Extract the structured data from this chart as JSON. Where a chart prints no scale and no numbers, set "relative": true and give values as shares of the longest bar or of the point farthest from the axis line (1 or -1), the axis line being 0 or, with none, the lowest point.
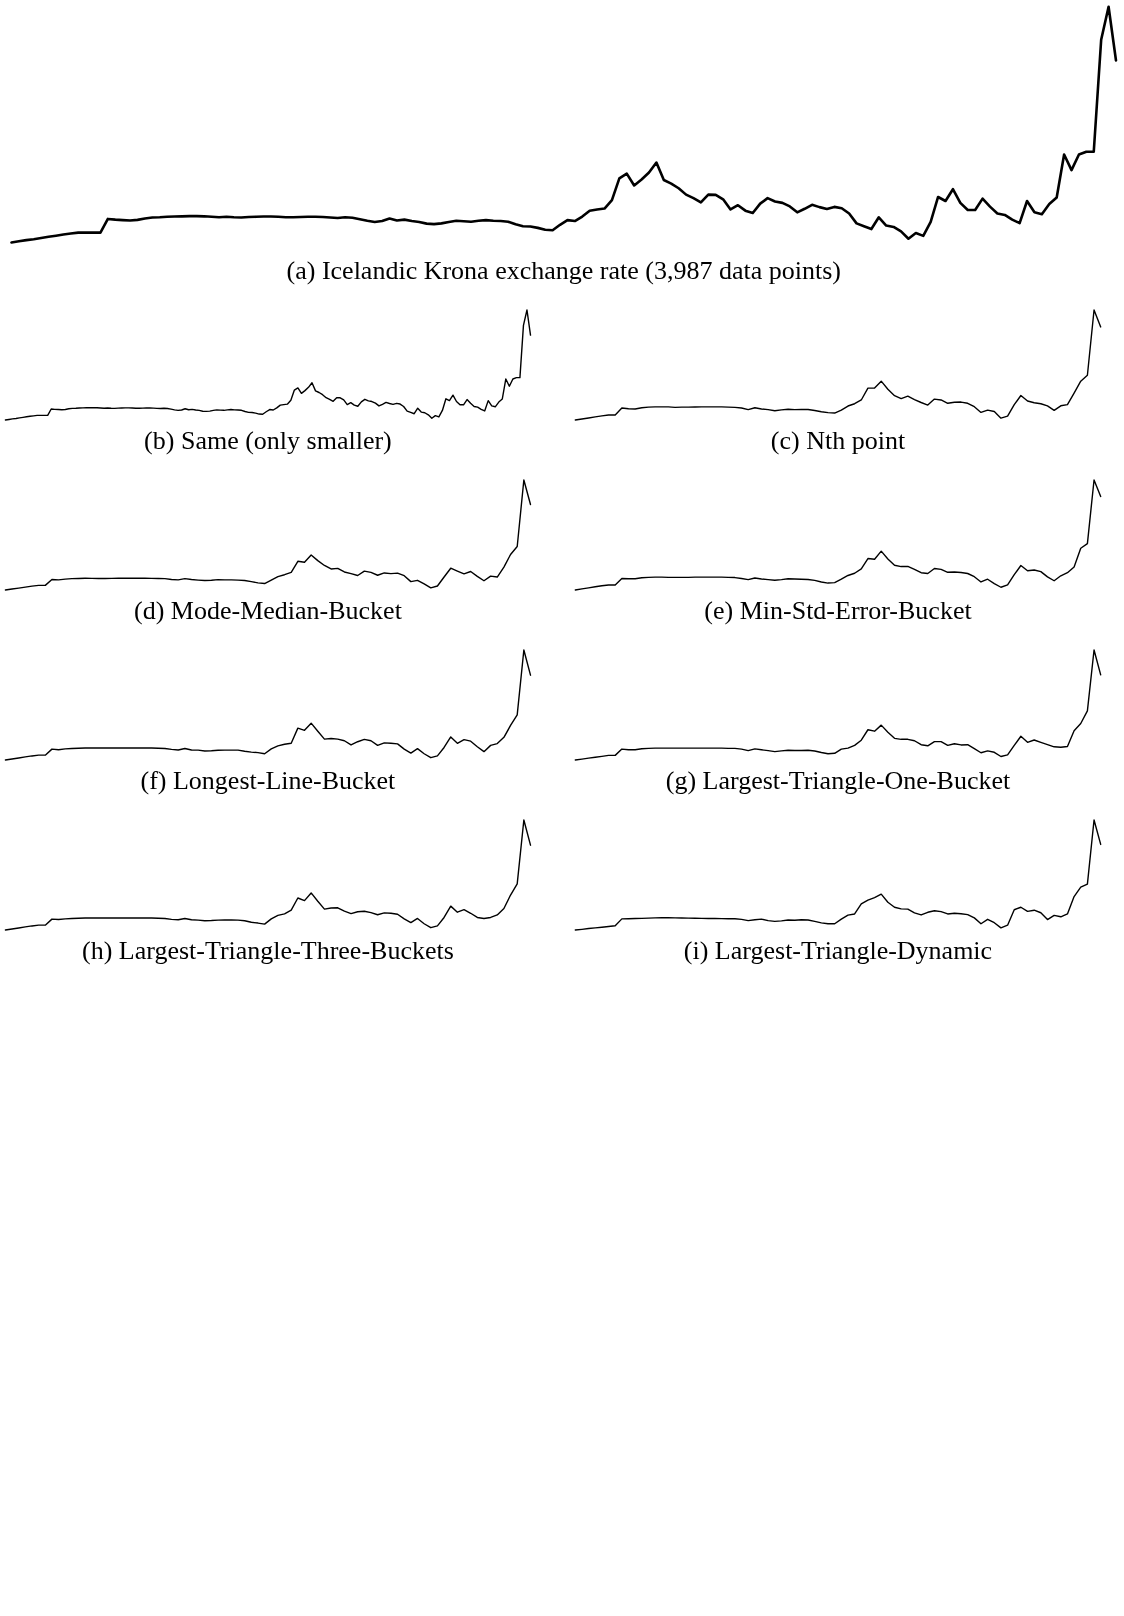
{
  "chart_data": [
    {
      "type": "line",
      "title": "(a) Icelandic Krona exchange rate (3,987 data points)",
      "relative": true,
      "categories": [
        null,
        null,
        null,
        null,
        null,
        null,
        null,
        null,
        null,
        null,
        null,
        null,
        null,
        null,
        null,
        null,
        null,
        null,
        null,
        null,
        null,
        null,
        null,
        null,
        null,
        null,
        null,
        null,
        null,
        null,
        null,
        null,
        null,
        null,
        null,
        null,
        null,
        null,
        null,
        null,
        null,
        null,
        null,
        null,
        null,
        null,
        null,
        null,
        null,
        null,
        null,
        null,
        null,
        null,
        null,
        null,
        null,
        null,
        null,
        null,
        null,
        null,
        null,
        null,
        null,
        null,
        null,
        null,
        null,
        null,
        null,
        null,
        null,
        null,
        null,
        null,
        null,
        null,
        null,
        null,
        null,
        null,
        null,
        null,
        null,
        null,
        null,
        null,
        null,
        null,
        null,
        null,
        null,
        null,
        null,
        null,
        null,
        null,
        null,
        null,
        null,
        null,
        null,
        null,
        null,
        null,
        null,
        null,
        null,
        null,
        null,
        null,
        null,
        null,
        null,
        null,
        null,
        null,
        null,
        null,
        null,
        null,
        null,
        null,
        null,
        null,
        null,
        null,
        null,
        null,
        null,
        null,
        null,
        null,
        null,
        null,
        null,
        null,
        null,
        null,
        null,
        null,
        null,
        null,
        null,
        null,
        null,
        null,
        null,
        null
      ],
      "series": [
        {
          "color": "#000000",
          "values": [
            0,
            0.005,
            0.01,
            0.014,
            0.019,
            0.024,
            0.029,
            0.034,
            0.038,
            0.042,
            0.042,
            0.042,
            0.042,
            0.1,
            0.097,
            0.095,
            0.093,
            0.096,
            0.102,
            0.106,
            0.107,
            0.109,
            0.11,
            0.111,
            0.112,
            0.112,
            0.111,
            0.109,
            0.107,
            0.109,
            0.107,
            0.106,
            0.108,
            0.109,
            0.11,
            0.11,
            0.109,
            0.107,
            0.107,
            0.108,
            0.109,
            0.109,
            0.108,
            0.106,
            0.104,
            0.107,
            0.105,
            0.099,
            0.092,
            0.087,
            0.091,
            0.102,
            0.093,
            0.097,
            0.091,
            0.087,
            0.08,
            0.078,
            0.081,
            0.087,
            0.092,
            0.09,
            0.088,
            0.092,
            0.095,
            0.092,
            0.091,
            0.088,
            0.077,
            0.069,
            0.068,
            0.062,
            0.054,
            0.052,
            0.075,
            0.095,
            0.091,
            0.11,
            0.135,
            0.14,
            0.144,
            0.18,
            0.272,
            0.292,
            0.242,
            0.267,
            0.297,
            0.339,
            0.265,
            0.25,
            0.23,
            0.203,
            0.188,
            0.17,
            0.203,
            0.202,
            0.183,
            0.14,
            0.158,
            0.135,
            0.125,
            0.165,
            0.188,
            0.174,
            0.168,
            0.153,
            0.128,
            0.143,
            0.16,
            0.15,
            0.142,
            0.151,
            0.145,
            0.123,
            0.081,
            0.069,
            0.057,
            0.107,
            0.072,
            0.066,
            0.047,
            0.016,
            0.04,
            0.028,
            0.087,
            0.193,
            0.176,
            0.226,
            0.168,
            0.138,
            0.138,
            0.186,
            0.152,
            0.123,
            0.117,
            0.097,
            0.082,
            0.176,
            0.128,
            0.12,
            0.163,
            0.191,
            0.373,
            0.307,
            0.373,
            0.385,
            0.385,
            0.86,
            1,
            0.772
          ]
        }
      ]
    },
    {
      "type": "line",
      "title": "(b) Same (only smaller)",
      "relative": true,
      "categories": [
        null,
        null,
        null,
        null,
        null,
        null,
        null,
        null,
        null,
        null,
        null,
        null,
        null,
        null,
        null,
        null,
        null,
        null,
        null,
        null,
        null,
        null,
        null,
        null,
        null,
        null,
        null,
        null,
        null,
        null,
        null,
        null,
        null,
        null,
        null,
        null,
        null,
        null,
        null,
        null,
        null,
        null,
        null,
        null,
        null,
        null,
        null,
        null,
        null,
        null,
        null,
        null,
        null,
        null,
        null,
        null,
        null,
        null,
        null,
        null,
        null,
        null,
        null,
        null,
        null,
        null,
        null,
        null,
        null,
        null,
        null,
        null,
        null,
        null,
        null,
        null,
        null,
        null,
        null,
        null,
        null,
        null,
        null,
        null,
        null,
        null,
        null,
        null,
        null,
        null,
        null,
        null,
        null,
        null,
        null,
        null,
        null,
        null,
        null,
        null,
        null,
        null,
        null,
        null,
        null,
        null,
        null,
        null,
        null,
        null,
        null,
        null,
        null,
        null,
        null,
        null,
        null,
        null,
        null,
        null,
        null,
        null,
        null,
        null,
        null,
        null,
        null,
        null,
        null,
        null,
        null,
        null,
        null,
        null,
        null,
        null,
        null,
        null,
        null,
        null,
        null,
        null,
        null,
        null,
        null,
        null,
        null,
        null,
        null,
        null
      ],
      "series": [
        {
          "color": "#000000",
          "values": [
            0,
            0.005,
            0.01,
            0.014,
            0.019,
            0.024,
            0.029,
            0.034,
            0.038,
            0.042,
            0.042,
            0.042,
            0.042,
            0.1,
            0.097,
            0.095,
            0.093,
            0.096,
            0.102,
            0.106,
            0.107,
            0.109,
            0.11,
            0.111,
            0.112,
            0.112,
            0.111,
            0.109,
            0.107,
            0.109,
            0.107,
            0.106,
            0.108,
            0.109,
            0.11,
            0.11,
            0.109,
            0.107,
            0.107,
            0.108,
            0.109,
            0.109,
            0.108,
            0.106,
            0.104,
            0.107,
            0.105,
            0.099,
            0.092,
            0.087,
            0.091,
            0.102,
            0.093,
            0.097,
            0.091,
            0.087,
            0.08,
            0.078,
            0.081,
            0.087,
            0.092,
            0.09,
            0.088,
            0.092,
            0.095,
            0.092,
            0.091,
            0.088,
            0.077,
            0.069,
            0.068,
            0.062,
            0.054,
            0.052,
            0.075,
            0.095,
            0.091,
            0.11,
            0.135,
            0.14,
            0.144,
            0.18,
            0.272,
            0.292,
            0.242,
            0.267,
            0.297,
            0.339,
            0.265,
            0.25,
            0.23,
            0.203,
            0.188,
            0.17,
            0.203,
            0.202,
            0.183,
            0.14,
            0.158,
            0.135,
            0.125,
            0.165,
            0.188,
            0.174,
            0.168,
            0.153,
            0.128,
            0.143,
            0.16,
            0.15,
            0.142,
            0.151,
            0.145,
            0.123,
            0.081,
            0.069,
            0.057,
            0.107,
            0.072,
            0.066,
            0.047,
            0.016,
            0.04,
            0.028,
            0.087,
            0.193,
            0.176,
            0.226,
            0.168,
            0.138,
            0.138,
            0.186,
            0.152,
            0.123,
            0.117,
            0.097,
            0.082,
            0.176,
            0.128,
            0.12,
            0.163,
            0.191,
            0.373,
            0.307,
            0.373,
            0.385,
            0.385,
            0.86,
            1,
            0.772
          ]
        }
      ]
    },
    {
      "type": "line",
      "title": "(c) Nth point",
      "relative": true,
      "categories": [
        null,
        null,
        null,
        null,
        null,
        null,
        null,
        null,
        null,
        null,
        null,
        null,
        null,
        null,
        null,
        null,
        null,
        null,
        null,
        null,
        null,
        null,
        null,
        null,
        null,
        null,
        null,
        null,
        null,
        null,
        null,
        null,
        null,
        null,
        null,
        null,
        null,
        null,
        null,
        null,
        null,
        null,
        null,
        null,
        null,
        null,
        null,
        null,
        null,
        null,
        null,
        null,
        null,
        null,
        null,
        null,
        null,
        null,
        null,
        null,
        null,
        null,
        null,
        null,
        null,
        null,
        null,
        null,
        null,
        null,
        null,
        null,
        null,
        null,
        null,
        null,
        null,
        null,
        null,
        null
      ],
      "series": [
        {
          "color": "#000000",
          "values": [
            0,
            0.009,
            0.018,
            0.028,
            0.037,
            0.046,
            0.046,
            0.109,
            0.102,
            0.1,
            0.111,
            0.117,
            0.119,
            0.119,
            0.119,
            0.115,
            0.117,
            0.117,
            0.118,
            0.119,
            0.119,
            0.119,
            0.119,
            0.117,
            0.115,
            0.109,
            0.094,
            0.111,
            0.1,
            0.094,
            0.084,
            0.092,
            0.098,
            0.094,
            0.096,
            0.096,
            0.086,
            0.075,
            0.067,
            0.063,
            0.09,
            0.127,
            0.148,
            0.182,
            0.29,
            0.29,
            0.353,
            0.28,
            0.221,
            0.194,
            0.217,
            0.186,
            0.159,
            0.136,
            0.19,
            0.182,
            0.152,
            0.161,
            0.163,
            0.152,
            0.121,
            0.069,
            0.09,
            0.077,
            0.017,
            0.035,
            0.14,
            0.223,
            0.173,
            0.157,
            0.148,
            0.129,
            0.088,
            0.129,
            0.14,
            0.244,
            0.353,
            0.407,
            1,
            0.846
          ]
        }
      ]
    },
    {
      "type": "line",
      "title": "(d) Mode-Median-Bucket",
      "relative": true,
      "categories": [
        null,
        null,
        null,
        null,
        null,
        null,
        null,
        null,
        null,
        null,
        null,
        null,
        null,
        null,
        null,
        null,
        null,
        null,
        null,
        null,
        null,
        null,
        null,
        null,
        null,
        null,
        null,
        null,
        null,
        null,
        null,
        null,
        null,
        null,
        null,
        null,
        null,
        null,
        null,
        null,
        null,
        null,
        null,
        null,
        null,
        null,
        null,
        null,
        null,
        null,
        null,
        null,
        null,
        null,
        null,
        null,
        null,
        null,
        null,
        null,
        null,
        null,
        null,
        null,
        null,
        null,
        null,
        null,
        null,
        null,
        null,
        null,
        null,
        null,
        null,
        null,
        null,
        null,
        null,
        null
      ],
      "series": [
        {
          "color": "#000000",
          "values": [
            0,
            0.009,
            0.017,
            0.026,
            0.035,
            0.042,
            0.042,
            0.095,
            0.092,
            0.099,
            0.103,
            0.105,
            0.107,
            0.106,
            0.105,
            0.105,
            0.106,
            0.107,
            0.107,
            0.107,
            0.107,
            0.107,
            0.106,
            0.105,
            0.103,
            0.095,
            0.092,
            0.103,
            0.095,
            0.09,
            0.086,
            0.088,
            0.094,
            0.092,
            0.092,
            0.09,
            0.086,
            0.076,
            0.065,
            0.059,
            0.09,
            0.122,
            0.139,
            0.16,
            0.261,
            0.252,
            0.319,
            0.267,
            0.223,
            0.191,
            0.197,
            0.164,
            0.149,
            0.132,
            0.172,
            0.16,
            0.134,
            0.155,
            0.149,
            0.153,
            0.13,
            0.076,
            0.088,
            0.055,
            0.019,
            0.036,
            0.118,
            0.198,
            0.172,
            0.147,
            0.168,
            0.124,
            0.084,
            0.126,
            0.118,
            0.208,
            0.323,
            0.395,
            1,
            0.777
          ]
        }
      ]
    },
    {
      "type": "line",
      "title": "(e) Min-Std-Error-Bucket",
      "relative": true,
      "categories": [
        null,
        null,
        null,
        null,
        null,
        null,
        null,
        null,
        null,
        null,
        null,
        null,
        null,
        null,
        null,
        null,
        null,
        null,
        null,
        null,
        null,
        null,
        null,
        null,
        null,
        null,
        null,
        null,
        null,
        null,
        null,
        null,
        null,
        null,
        null,
        null,
        null,
        null,
        null,
        null,
        null,
        null,
        null,
        null,
        null,
        null,
        null,
        null,
        null,
        null,
        null,
        null,
        null,
        null,
        null,
        null,
        null,
        null,
        null,
        null,
        null,
        null,
        null,
        null,
        null,
        null,
        null,
        null,
        null,
        null,
        null,
        null,
        null,
        null,
        null,
        null,
        null,
        null,
        null,
        null
      ],
      "series": [
        {
          "color": "#000000",
          "values": [
            0,
            0.01,
            0.019,
            0.029,
            0.039,
            0.046,
            0.046,
            0.104,
            0.102,
            0.102,
            0.111,
            0.115,
            0.117,
            0.117,
            0.115,
            0.115,
            0.115,
            0.115,
            0.117,
            0.117,
            0.117,
            0.117,
            0.117,
            0.115,
            0.113,
            0.104,
            0.094,
            0.109,
            0.1,
            0.094,
            0.088,
            0.094,
            0.102,
            0.1,
            0.098,
            0.096,
            0.088,
            0.073,
            0.063,
            0.067,
            0.098,
            0.132,
            0.152,
            0.192,
            0.286,
            0.28,
            0.353,
            0.282,
            0.225,
            0.213,
            0.215,
            0.188,
            0.157,
            0.15,
            0.196,
            0.188,
            0.161,
            0.163,
            0.159,
            0.15,
            0.121,
            0.073,
            0.098,
            0.058,
            0.025,
            0.046,
            0.14,
            0.223,
            0.175,
            0.182,
            0.167,
            0.119,
            0.084,
            0.129,
            0.157,
            0.209,
            0.38,
            0.422,
            1,
            0.85
          ]
        }
      ]
    },
    {
      "type": "line",
      "title": "(f) Longest-Line-Bucket",
      "relative": true,
      "categories": [
        null,
        null,
        null,
        null,
        null,
        null,
        null,
        null,
        null,
        null,
        null,
        null,
        null,
        null,
        null,
        null,
        null,
        null,
        null,
        null,
        null,
        null,
        null,
        null,
        null,
        null,
        null,
        null,
        null,
        null,
        null,
        null,
        null,
        null,
        null,
        null,
        null,
        null,
        null,
        null,
        null,
        null,
        null,
        null,
        null,
        null,
        null,
        null,
        null,
        null,
        null,
        null,
        null,
        null,
        null,
        null,
        null,
        null,
        null,
        null,
        null,
        null,
        null,
        null,
        null,
        null,
        null,
        null,
        null,
        null,
        null,
        null,
        null,
        null,
        null,
        null,
        null,
        null,
        null,
        null
      ],
      "series": [
        {
          "color": "#000000",
          "values": [
            0,
            0.009,
            0.018,
            0.028,
            0.037,
            0.044,
            0.044,
            0.099,
            0.093,
            0.101,
            0.105,
            0.107,
            0.109,
            0.109,
            0.109,
            0.109,
            0.109,
            0.109,
            0.109,
            0.109,
            0.109,
            0.109,
            0.109,
            0.107,
            0.105,
            0.097,
            0.091,
            0.105,
            0.091,
            0.09,
            0.082,
            0.084,
            0.088,
            0.09,
            0.09,
            0.09,
            0.08,
            0.072,
            0.067,
            0.057,
            0.101,
            0.128,
            0.143,
            0.152,
            0.29,
            0.27,
            0.335,
            0.261,
            0.19,
            0.196,
            0.19,
            0.175,
            0.137,
            0.166,
            0.187,
            0.175,
            0.133,
            0.156,
            0.152,
            0.147,
            0.099,
            0.063,
            0.103,
            0.057,
            0.021,
            0.038,
            0.114,
            0.21,
            0.152,
            0.185,
            0.171,
            0.12,
            0.076,
            0.133,
            0.149,
            0.206,
            0.314,
            0.41,
            1,
            0.771
          ]
        }
      ]
    },
    {
      "type": "line",
      "title": "(g) Largest-Triangle-One-Bucket",
      "relative": true,
      "categories": [
        null,
        null,
        null,
        null,
        null,
        null,
        null,
        null,
        null,
        null,
        null,
        null,
        null,
        null,
        null,
        null,
        null,
        null,
        null,
        null,
        null,
        null,
        null,
        null,
        null,
        null,
        null,
        null,
        null,
        null,
        null,
        null,
        null,
        null,
        null,
        null,
        null,
        null,
        null,
        null,
        null,
        null,
        null,
        null,
        null,
        null,
        null,
        null,
        null,
        null,
        null,
        null,
        null,
        null,
        null,
        null,
        null,
        null,
        null,
        null,
        null,
        null,
        null,
        null,
        null,
        null,
        null,
        null,
        null,
        null,
        null,
        null,
        null,
        null,
        null,
        null,
        null,
        null,
        null,
        null
      ],
      "series": [
        {
          "color": "#000000",
          "values": [
            0,
            0.008,
            0.017,
            0.025,
            0.033,
            0.042,
            0.042,
            0.099,
            0.093,
            0.093,
            0.102,
            0.106,
            0.108,
            0.108,
            0.108,
            0.108,
            0.108,
            0.108,
            0.108,
            0.108,
            0.108,
            0.108,
            0.108,
            0.106,
            0.106,
            0.099,
            0.085,
            0.101,
            0.093,
            0.085,
            0.076,
            0.083,
            0.089,
            0.087,
            0.087,
            0.089,
            0.082,
            0.068,
            0.057,
            0.061,
            0.099,
            0.108,
            0.133,
            0.18,
            0.275,
            0.262,
            0.317,
            0.252,
            0.197,
            0.188,
            0.188,
            0.175,
            0.139,
            0.129,
            0.167,
            0.167,
            0.133,
            0.148,
            0.137,
            0.139,
            0.104,
            0.066,
            0.083,
            0.07,
            0.032,
            0.046,
            0.133,
            0.216,
            0.161,
            0.182,
            0.161,
            0.14,
            0.12,
            0.116,
            0.123,
            0.266,
            0.332,
            0.446,
            1,
            0.774
          ]
        }
      ]
    },
    {
      "type": "line",
      "title": "(h) Largest-Triangle-Three-Buckets",
      "relative": true,
      "categories": [
        null,
        null,
        null,
        null,
        null,
        null,
        null,
        null,
        null,
        null,
        null,
        null,
        null,
        null,
        null,
        null,
        null,
        null,
        null,
        null,
        null,
        null,
        null,
        null,
        null,
        null,
        null,
        null,
        null,
        null,
        null,
        null,
        null,
        null,
        null,
        null,
        null,
        null,
        null,
        null,
        null,
        null,
        null,
        null,
        null,
        null,
        null,
        null,
        null,
        null,
        null,
        null,
        null,
        null,
        null,
        null,
        null,
        null,
        null,
        null,
        null,
        null,
        null,
        null,
        null,
        null,
        null,
        null,
        null,
        null,
        null,
        null,
        null,
        null,
        null,
        null,
        null,
        null,
        null,
        null
      ],
      "series": [
        {
          "color": "#000000",
          "values": [
            0,
            0.009,
            0.018,
            0.028,
            0.037,
            0.044,
            0.044,
            0.099,
            0.095,
            0.101,
            0.105,
            0.107,
            0.109,
            0.109,
            0.109,
            0.109,
            0.109,
            0.109,
            0.109,
            0.109,
            0.109,
            0.109,
            0.109,
            0.107,
            0.105,
            0.097,
            0.093,
            0.105,
            0.093,
            0.09,
            0.084,
            0.086,
            0.09,
            0.091,
            0.091,
            0.09,
            0.084,
            0.07,
            0.063,
            0.053,
            0.101,
            0.133,
            0.147,
            0.181,
            0.291,
            0.267,
            0.337,
            0.261,
            0.19,
            0.2,
            0.202,
            0.171,
            0.149,
            0.166,
            0.17,
            0.158,
            0.139,
            0.156,
            0.152,
            0.143,
            0.101,
            0.067,
            0.105,
            0.057,
            0.021,
            0.038,
            0.114,
            0.217,
            0.162,
            0.185,
            0.152,
            0.114,
            0.105,
            0.114,
            0.137,
            0.196,
            0.318,
            0.419,
            1,
            0.771
          ]
        }
      ]
    },
    {
      "type": "line",
      "title": "(i) Largest-Triangle-Dynamic",
      "relative": true,
      "categories": [
        null,
        null,
        null,
        null,
        null,
        null,
        null,
        null,
        null,
        null,
        null,
        null,
        null,
        null,
        null,
        null,
        null,
        null,
        null,
        null,
        null,
        null,
        null,
        null,
        null,
        null,
        null,
        null,
        null,
        null,
        null,
        null,
        null,
        null,
        null,
        null,
        null,
        null,
        null,
        null,
        null,
        null,
        null,
        null,
        null,
        null,
        null,
        null,
        null,
        null,
        null,
        null,
        null,
        null,
        null,
        null,
        null,
        null,
        null,
        null,
        null,
        null,
        null,
        null,
        null,
        null,
        null,
        null,
        null,
        null,
        null,
        null,
        null,
        null,
        null,
        null,
        null,
        null,
        null,
        null
      ],
      "series": [
        {
          "color": "#000000",
          "values": [
            0,
            0.006,
            0.013,
            0.019,
            0.025,
            0.032,
            0.038,
            0.101,
            0.102,
            0.104,
            0.106,
            0.108,
            0.11,
            0.112,
            0.111,
            0.11,
            0.109,
            0.108,
            0.107,
            0.106,
            0.105,
            0.104,
            0.103,
            0.102,
            0.102,
            0.097,
            0.085,
            0.093,
            0.099,
            0.085,
            0.078,
            0.083,
            0.091,
            0.089,
            0.093,
            0.091,
            0.078,
            0.065,
            0.057,
            0.057,
            0.099,
            0.135,
            0.146,
            0.237,
            0.271,
            0.294,
            0.326,
            0.252,
            0.207,
            0.192,
            0.19,
            0.156,
            0.137,
            0.161,
            0.175,
            0.167,
            0.146,
            0.152,
            0.148,
            0.14,
            0.11,
            0.057,
            0.097,
            0.066,
            0.019,
            0.044,
            0.184,
            0.207,
            0.169,
            0.18,
            0.157,
            0.095,
            0.133,
            0.12,
            0.146,
            0.304,
            0.389,
            0.417,
            1,
            0.778
          ]
        }
      ]
    }
  ]
}
